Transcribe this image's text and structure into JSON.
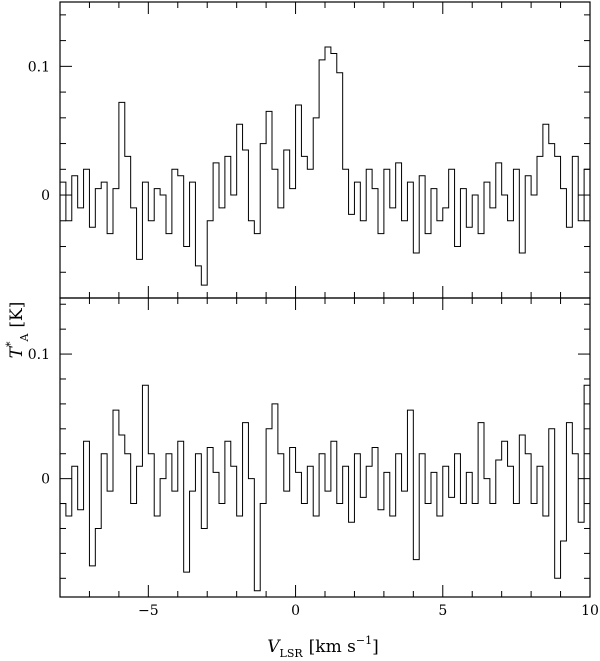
{
  "chart_data": [
    {
      "type": "line",
      "style": "step",
      "panel": "top",
      "xlim": [
        -8,
        10
      ],
      "ylim": [
        -0.08,
        0.15
      ],
      "yticks": [
        {
          "value": 0,
          "label": "0"
        },
        {
          "value": 0.1,
          "label": "0.1"
        }
      ],
      "series": [
        {
          "x": [
            -8.0,
            -7.8,
            -7.6,
            -7.4,
            -7.2,
            -7.0,
            -6.8,
            -6.6,
            -6.4,
            -6.2,
            -6.0,
            -5.8,
            -5.6,
            -5.4,
            -5.2,
            -5.0,
            -4.8,
            -4.6,
            -4.4,
            -4.2,
            -4.0,
            -3.8,
            -3.6,
            -3.4,
            -3.2,
            -3.0,
            -2.8,
            -2.6,
            -2.4,
            -2.2,
            -2.0,
            -1.8,
            -1.6,
            -1.4,
            -1.2,
            -1.0,
            -0.8,
            -0.6,
            -0.4,
            -0.2,
            0.0,
            0.2,
            0.4,
            0.6,
            0.8,
            1.0,
            1.2,
            1.4,
            1.6,
            1.8,
            2.0,
            2.2,
            2.4,
            2.6,
            2.8,
            3.0,
            3.2,
            3.4,
            3.6,
            3.8,
            4.0,
            4.2,
            4.4,
            4.6,
            4.8,
            5.0,
            5.2,
            5.4,
            5.6,
            5.8,
            6.0,
            6.2,
            6.4,
            6.6,
            6.8,
            7.0,
            7.2,
            7.4,
            7.6,
            7.8,
            8.0,
            8.2,
            8.4,
            8.6,
            8.8,
            9.0,
            9.2,
            9.4,
            9.6,
            9.8
          ],
          "y": [
            0.01,
            -0.02,
            0.015,
            -0.01,
            0.02,
            -0.025,
            0.005,
            0.01,
            -0.03,
            0.005,
            0.072,
            0.03,
            -0.01,
            -0.05,
            0.01,
            -0.02,
            0.005,
            0.0,
            -0.03,
            0.02,
            0.015,
            -0.04,
            0.01,
            -0.055,
            -0.07,
            -0.02,
            0.025,
            -0.01,
            0.03,
            0.0,
            0.055,
            0.035,
            -0.02,
            -0.03,
            0.04,
            0.065,
            0.02,
            -0.01,
            0.035,
            0.005,
            0.07,
            0.03,
            0.02,
            0.06,
            0.105,
            0.115,
            0.11,
            0.095,
            0.02,
            -0.015,
            0.01,
            -0.02,
            0.02,
            0.005,
            -0.03,
            0.02,
            -0.01,
            0.025,
            -0.02,
            0.01,
            -0.045,
            0.015,
            -0.03,
            0.005,
            -0.02,
            -0.01,
            0.02,
            -0.04,
            0.005,
            -0.025,
            0.0,
            -0.03,
            0.01,
            -0.01,
            0.025,
            0.0,
            -0.02,
            0.02,
            -0.045,
            0.015,
            0.0,
            0.03,
            0.055,
            0.04,
            0.03,
            0.005,
            -0.025,
            0.03,
            -0.02,
            0.02
          ]
        }
      ]
    },
    {
      "type": "line",
      "style": "step",
      "panel": "bottom",
      "xlim": [
        -8,
        10
      ],
      "ylim": [
        -0.095,
        0.145
      ],
      "xticks": [
        {
          "value": -5,
          "label": "−5"
        },
        {
          "value": 0,
          "label": "0"
        },
        {
          "value": 5,
          "label": "5"
        },
        {
          "value": 10,
          "label": "10"
        }
      ],
      "yticks": [
        {
          "value": 0,
          "label": "0"
        },
        {
          "value": 0.1,
          "label": "0.1"
        }
      ],
      "series": [
        {
          "x": [
            -8.0,
            -7.8,
            -7.6,
            -7.4,
            -7.2,
            -7.0,
            -6.8,
            -6.6,
            -6.4,
            -6.2,
            -6.0,
            -5.8,
            -5.6,
            -5.4,
            -5.2,
            -5.0,
            -4.8,
            -4.6,
            -4.4,
            -4.2,
            -4.0,
            -3.8,
            -3.6,
            -3.4,
            -3.2,
            -3.0,
            -2.8,
            -2.6,
            -2.4,
            -2.2,
            -2.0,
            -1.8,
            -1.6,
            -1.4,
            -1.2,
            -1.0,
            -0.8,
            -0.6,
            -0.4,
            -0.2,
            0.0,
            0.2,
            0.4,
            0.6,
            0.8,
            1.0,
            1.2,
            1.4,
            1.6,
            1.8,
            2.0,
            2.2,
            2.4,
            2.6,
            2.8,
            3.0,
            3.2,
            3.4,
            3.6,
            3.8,
            4.0,
            4.2,
            4.4,
            4.6,
            4.8,
            5.0,
            5.2,
            5.4,
            5.6,
            5.8,
            6.0,
            6.2,
            6.4,
            6.6,
            6.8,
            7.0,
            7.2,
            7.4,
            7.6,
            7.8,
            8.0,
            8.2,
            8.4,
            8.6,
            8.8,
            9.0,
            9.2,
            9.4,
            9.6,
            9.8
          ],
          "y": [
            -0.02,
            -0.03,
            0.01,
            -0.025,
            0.03,
            -0.07,
            -0.04,
            0.02,
            -0.01,
            0.055,
            0.035,
            0.02,
            -0.02,
            0.01,
            0.075,
            0.02,
            -0.03,
            0.0,
            0.02,
            -0.01,
            0.03,
            -0.075,
            -0.01,
            0.02,
            -0.04,
            0.025,
            0.005,
            -0.02,
            0.03,
            0.01,
            -0.03,
            0.045,
            0.0,
            -0.09,
            -0.02,
            0.04,
            0.06,
            0.02,
            -0.01,
            0.025,
            0.005,
            -0.02,
            0.01,
            -0.03,
            0.02,
            -0.01,
            0.03,
            -0.02,
            0.01,
            -0.035,
            0.02,
            -0.015,
            0.01,
            0.025,
            -0.025,
            0.005,
            -0.03,
            0.02,
            -0.01,
            0.055,
            -0.065,
            0.02,
            -0.02,
            0.005,
            -0.03,
            0.01,
            -0.015,
            0.02,
            -0.02,
            0.005,
            -0.02,
            0.045,
            0.0,
            -0.02,
            0.015,
            0.03,
            0.01,
            -0.02,
            0.035,
            0.02,
            -0.02,
            0.01,
            -0.03,
            0.04,
            -0.08,
            -0.05,
            0.045,
            0.02,
            -0.035,
            0.075
          ]
        }
      ]
    }
  ],
  "axes": {
    "ylabel_main": "T",
    "ylabel_sup": "*",
    "ylabel_sub": "A",
    "ylabel_unit": "[K]",
    "xlabel_main": "V",
    "xlabel_sub": "LSR",
    "xlabel_unit_pre": "[km s",
    "xlabel_unit_sup": "−1",
    "xlabel_unit_post": "]"
  }
}
